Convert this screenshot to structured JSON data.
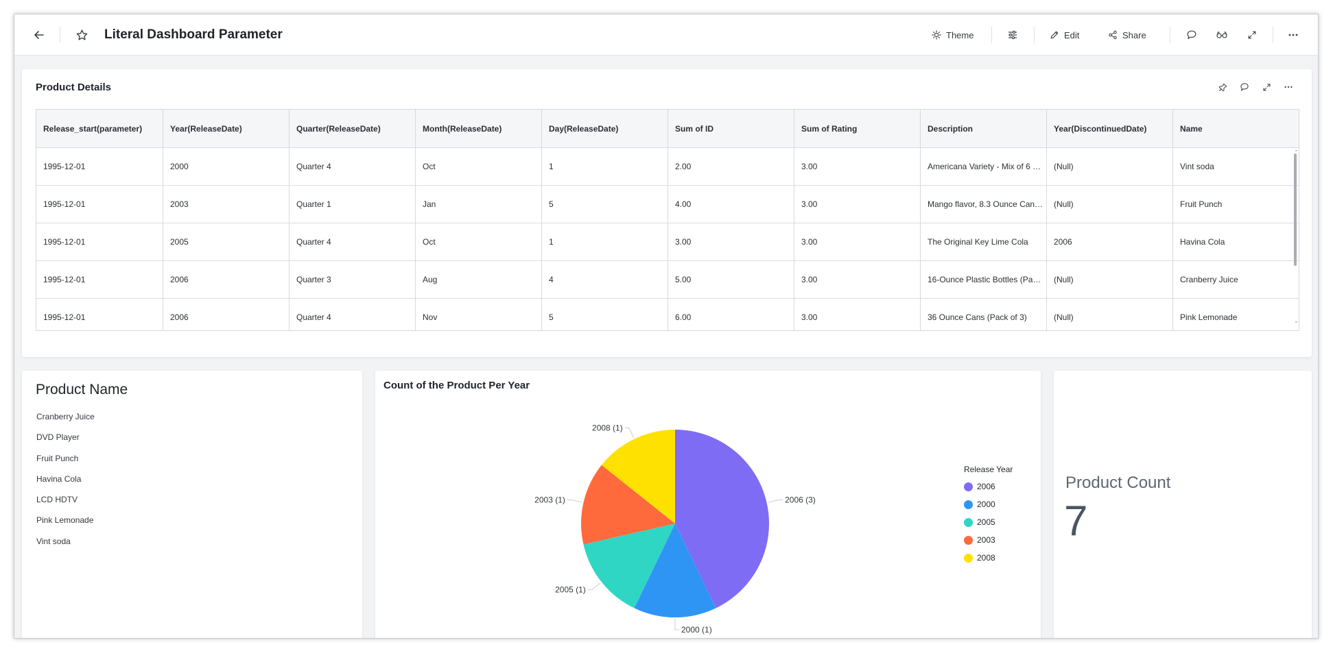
{
  "header": {
    "title": "Literal Dashboard Parameter",
    "theme_label": "Theme",
    "edit_label": "Edit",
    "share_label": "Share"
  },
  "product_details": {
    "title": "Product Details",
    "columns": [
      "Release_start(parameter)",
      "Year(ReleaseDate)",
      "Quarter(ReleaseDate)",
      "Month(ReleaseDate)",
      "Day(ReleaseDate)",
      "Sum of ID",
      "Sum of Rating",
      "Description",
      "Year(DiscontinuedDate)",
      "Name"
    ],
    "rows": [
      [
        "1995-12-01",
        "2000",
        "Quarter 4",
        "Oct",
        "1",
        "2.00",
        "3.00",
        "Americana Variety - Mix of 6 …",
        "(Null)",
        "Vint soda"
      ],
      [
        "1995-12-01",
        "2003",
        "Quarter 1",
        "Jan",
        "5",
        "4.00",
        "3.00",
        "Mango flavor, 8.3 Ounce Can…",
        "(Null)",
        "Fruit Punch"
      ],
      [
        "1995-12-01",
        "2005",
        "Quarter 4",
        "Oct",
        "1",
        "3.00",
        "3.00",
        "The Original Key Lime Cola",
        "2006",
        "Havina Cola"
      ],
      [
        "1995-12-01",
        "2006",
        "Quarter 3",
        "Aug",
        "4",
        "5.00",
        "3.00",
        "16-Ounce Plastic Bottles (Pa…",
        "(Null)",
        "Cranberry Juice"
      ],
      [
        "1995-12-01",
        "2006",
        "Quarter 4",
        "Nov",
        "5",
        "6.00",
        "3.00",
        "36 Ounce Cans (Pack of 3)",
        "(Null)",
        "Pink Lemonade"
      ]
    ]
  },
  "product_name": {
    "title": "Product Name",
    "items": [
      "Cranberry Juice",
      "DVD Player",
      "Fruit Punch",
      "Havina Cola",
      "LCD HDTV",
      "Pink Lemonade",
      "Vint soda"
    ]
  },
  "pie_widget": {
    "title": "Count of the Product Per Year"
  },
  "chart_data": {
    "type": "pie",
    "title": "Count of the Product Per Year",
    "legend_title": "Release Year",
    "legend_position": "right",
    "categories": [
      "2006",
      "2000",
      "2005",
      "2003",
      "2008"
    ],
    "values": [
      3,
      1,
      1,
      1,
      1
    ],
    "data_labels": [
      "2006 (3)",
      "2000 (1)",
      "2005 (1)",
      "2003 (1)",
      "2008 (1)"
    ],
    "colors": [
      "#7f6cf5",
      "#2f95f5",
      "#2fd6c4",
      "#ff6a3d",
      "#ffe100"
    ]
  },
  "kpi": {
    "label": "Product Count",
    "value": "7"
  },
  "colors": {
    "icon": "#3c4148",
    "background": "#f2f3f5"
  }
}
